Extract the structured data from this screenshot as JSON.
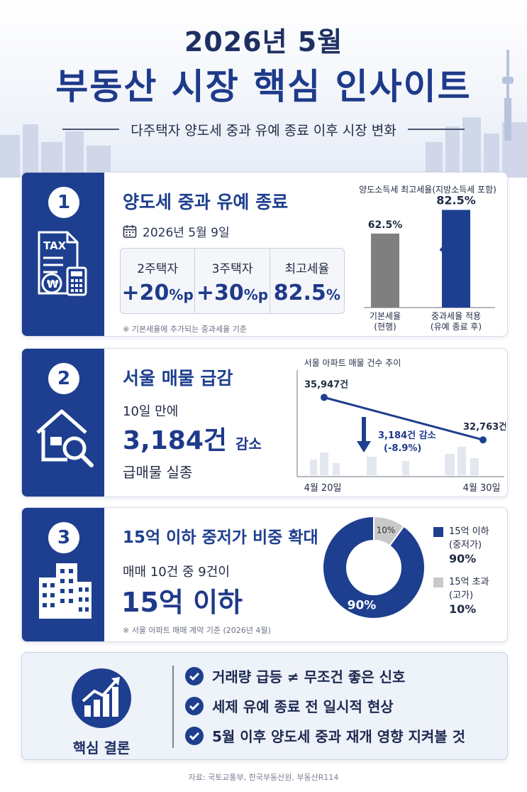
{
  "header": {
    "title_line1": "2026년 5월",
    "title_line2": "부동산 시장 핵심 인사이트",
    "subtitle": "다주택자 양도세 중과 유예 종료 이후 시장 변화"
  },
  "section1": {
    "number": "1",
    "icon": "tax-document-icon",
    "icon_text": "TAX",
    "title": "양도세 중과 유예 종료",
    "date": "2026년 5월 9일",
    "rates": [
      {
        "label": "2주택자",
        "value": "+20",
        "unit": "%p"
      },
      {
        "label": "3주택자",
        "value": "+30",
        "unit": "%p"
      },
      {
        "label": "최고세율",
        "value": "82.5",
        "unit": "%"
      }
    ],
    "note": "※ 기본세율에 추가되는 중과세율 기준",
    "chart_title": "양도소득세 최고세율(지방소득세 포함)"
  },
  "section2": {
    "number": "2",
    "icon": "house-search-icon",
    "title": "서울 매물 급감",
    "line1": "10일 만에",
    "big_value": "3,184건",
    "big_suffix": "감소",
    "line3": "급매물 실종",
    "chart_title": "서울 아파트 매물 건수 추이",
    "drop_line1": "3,184건 감소",
    "drop_line2": "(-8.9%)"
  },
  "section3": {
    "number": "3",
    "icon": "buildings-icon",
    "title": "15억 이하 중저가 비중 확대",
    "line1": "매매 10건 중 9건이",
    "big_value": "15억 이하",
    "note": "※ 서울 아파트 매매 계약 기준 (2026년 4월)",
    "legend": [
      {
        "label1": "15억 이하",
        "label2": "(중저가)",
        "value": "90%"
      },
      {
        "label1": "15억 초과",
        "label2": "(고가)",
        "value": "10%"
      }
    ]
  },
  "conclusion": {
    "icon": "growth-chart-icon",
    "label": "핵심 결론",
    "items": [
      "거래량 급등 ≠ 무조건 좋은 신호",
      "세제 유예 종료 전 일시적 현상",
      "5월 이후 양도세 중과 재개 영향 지켜볼 것"
    ]
  },
  "source": "자료: 국토교통부, 한국부동산원, 부동산R114",
  "colors": {
    "navy": "#1e3f8f",
    "gray_bar": "#7f7f7f",
    "light_gray": "#c9c9c9",
    "bg": "#ffffff"
  },
  "chart_data": [
    {
      "type": "bar",
      "title": "양도소득세 최고세율(지방소득세 포함)",
      "categories": [
        "기본세율\n(현행)",
        "중과세율 적용\n(유예 종료 후)"
      ],
      "category_lines": [
        [
          "기본세율",
          "(현행)"
        ],
        [
          "중과세율 적용",
          "(유예 종료 후)"
        ]
      ],
      "values": [
        62.5,
        82.5
      ],
      "value_labels": [
        "62.5%",
        "82.5%"
      ],
      "ylim": [
        0,
        90
      ]
    },
    {
      "type": "line",
      "title": "서울 아파트 매물 건수 추이",
      "x": [
        "4월 20일",
        "4월 30일"
      ],
      "values": [
        35947,
        32763
      ],
      "value_labels": [
        "35,947건",
        "32,763건"
      ],
      "ylim": [
        30000,
        38000
      ]
    },
    {
      "type": "pie",
      "categories": [
        "15억 이하 (중저가)",
        "15억 초과 (고가)"
      ],
      "values": [
        90,
        10
      ],
      "value_labels": [
        "90%",
        "10%"
      ],
      "colors": [
        "#1e3f8f",
        "#c9c9c9"
      ]
    }
  ]
}
